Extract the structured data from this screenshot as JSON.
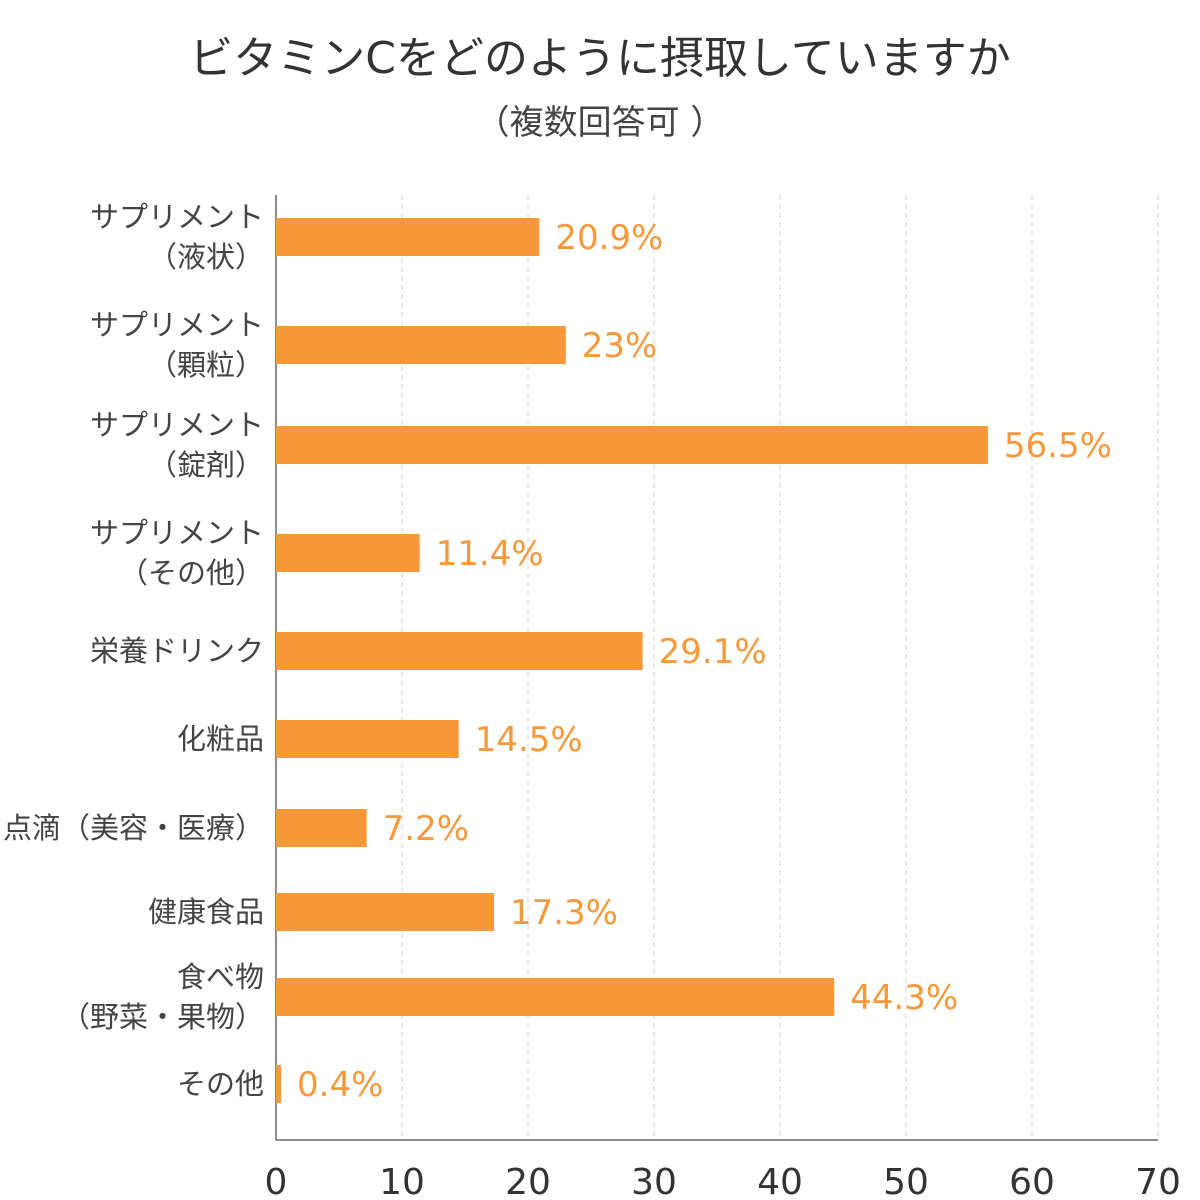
{
  "chart_data": {
    "type": "bar",
    "orientation": "horizontal",
    "title": "ビタミンCをどのように摂取していますか",
    "subtitle": "（複数回答可 ）",
    "categories": [
      [
        "サプリメント",
        "（液状）"
      ],
      [
        "サプリメント",
        "（顆粒）"
      ],
      [
        "サプリメント",
        "（錠剤）"
      ],
      [
        "サプリメント",
        "（その他）"
      ],
      [
        "栄養ドリンク"
      ],
      [
        "化粧品"
      ],
      [
        "点滴（美容・医療）"
      ],
      [
        "健康食品"
      ],
      [
        "食べ物",
        "（野菜・果物）"
      ],
      [
        "その他"
      ]
    ],
    "values": [
      20.9,
      23,
      56.5,
      11.4,
      29.1,
      14.5,
      7.2,
      17.3,
      44.3,
      0.4
    ],
    "value_labels": [
      "20.9%",
      "23%",
      "56.5%",
      "11.4%",
      "29.1%",
      "14.5%",
      "7.2%",
      "17.3%",
      "44.3%",
      "0.4%"
    ],
    "xlim": [
      0,
      70
    ],
    "xticks": [
      "0",
      "10",
      "20",
      "30",
      "40",
      "50",
      "60",
      "70"
    ],
    "grid": true,
    "bar_color": "#f7983a",
    "xlabel": "",
    "ylabel": ""
  }
}
